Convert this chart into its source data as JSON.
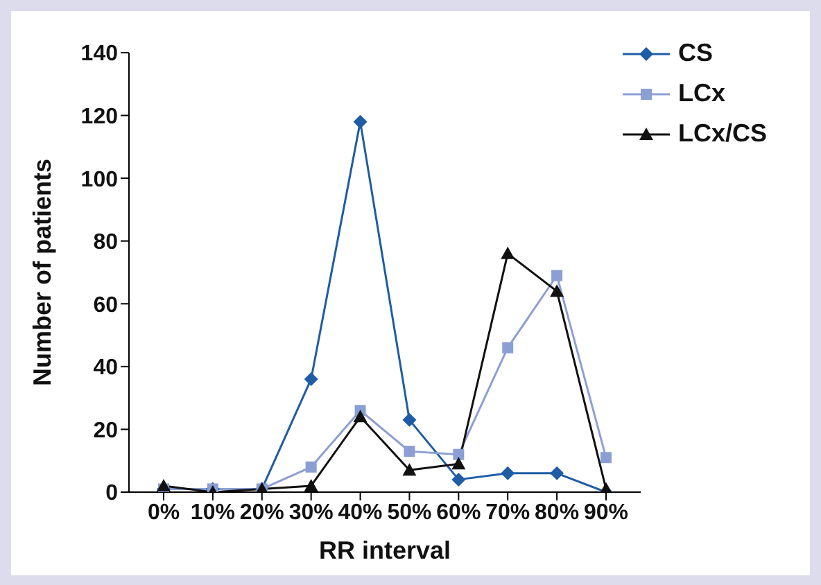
{
  "chart_data": {
    "type": "line",
    "xlabel": "RR interval",
    "ylabel": "Number of patients",
    "categories": [
      "0%",
      "10%",
      "20%",
      "30%",
      "40%",
      "50%",
      "60%",
      "70%",
      "80%",
      "90%"
    ],
    "series": [
      {
        "name": "CS",
        "color": "#1f5ca6",
        "marker": "diamond",
        "values": [
          1,
          1,
          1,
          36,
          118,
          23,
          4,
          6,
          6,
          0
        ]
      },
      {
        "name": "LCx",
        "color": "#8c9fd4",
        "marker": "square",
        "values": [
          1,
          1,
          1,
          8,
          26,
          13,
          12,
          46,
          69,
          11
        ]
      },
      {
        "name": "LCx/CS",
        "color": "#111111",
        "marker": "triangle",
        "values": [
          2,
          0,
          1,
          2,
          24,
          7,
          9,
          76,
          64,
          1
        ]
      }
    ],
    "ylim": [
      0,
      140
    ],
    "yticks": [
      0,
      20,
      40,
      60,
      80,
      100,
      120,
      140
    ],
    "grid": false,
    "legend": "top right",
    "line_style": "solid"
  }
}
